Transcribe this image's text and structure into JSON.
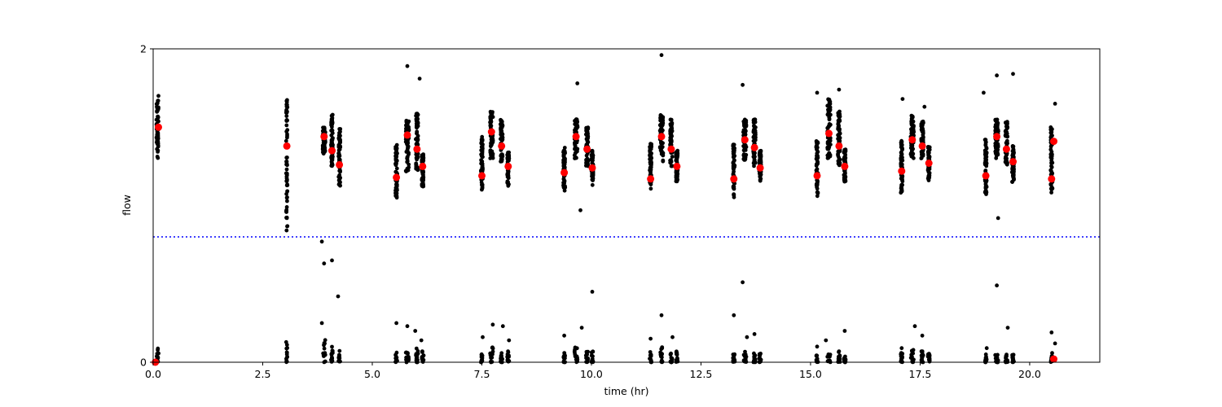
{
  "chart_data": {
    "type": "scatter",
    "title": "",
    "xlabel": "time (hr)",
    "ylabel": "flow",
    "xlim": [
      0,
      21.6
    ],
    "ylim": [
      0,
      2
    ],
    "xticks": [
      {
        "value": 0,
        "label": "0.0"
      },
      {
        "value": 2.5,
        "label": "2.5"
      },
      {
        "value": 5,
        "label": "5.0"
      },
      {
        "value": 7.5,
        "label": "7.5"
      },
      {
        "value": 10,
        "label": "10.0"
      },
      {
        "value": 12.5,
        "label": "12.5"
      },
      {
        "value": 15,
        "label": "15.0"
      },
      {
        "value": 17.5,
        "label": "17.5"
      },
      {
        "value": 20,
        "label": "20.0"
      }
    ],
    "yticks": [
      {
        "value": 0,
        "label": "0"
      },
      {
        "value": 2,
        "label": "2"
      }
    ],
    "threshold": {
      "y": 0.8,
      "color": "#0000ff",
      "style": "dotted"
    },
    "grid": false,
    "colors": {
      "raw_points": "#000000",
      "mean_points": "#ff0000"
    },
    "raw_clusters": [
      {
        "x": 0.1,
        "width": 0.05,
        "ymin": 1.3,
        "ymax": 1.67,
        "lowTop": 0.1
      },
      {
        "x": 3.05,
        "width": 0.03,
        "ymin": 0.83,
        "ymax": 1.68,
        "lowTop": 0.13
      },
      {
        "x": 3.9,
        "width": 0.06,
        "ymin": 1.33,
        "ymax": 1.5,
        "lowTop": 0.15
      },
      {
        "x": 4.08,
        "width": 0.04,
        "ymin": 1.25,
        "ymax": 1.58,
        "lowTop": 0.1
      },
      {
        "x": 4.25,
        "width": 0.04,
        "ymin": 1.12,
        "ymax": 1.5,
        "lowTop": 0.08
      },
      {
        "x": 5.55,
        "width": 0.04,
        "ymin": 1.05,
        "ymax": 1.4,
        "lowTop": 0.07
      },
      {
        "x": 5.8,
        "width": 0.07,
        "ymin": 1.2,
        "ymax": 1.55,
        "lowTop": 0.08
      },
      {
        "x": 6.02,
        "width": 0.05,
        "ymin": 1.2,
        "ymax": 1.6,
        "lowTop": 0.1
      },
      {
        "x": 6.15,
        "width": 0.04,
        "ymin": 1.12,
        "ymax": 1.33,
        "lowTop": 0.07
      },
      {
        "x": 7.5,
        "width": 0.04,
        "ymin": 1.1,
        "ymax": 1.45,
        "lowTop": 0.06
      },
      {
        "x": 7.72,
        "width": 0.07,
        "ymin": 1.3,
        "ymax": 1.6,
        "lowTop": 0.1
      },
      {
        "x": 7.95,
        "width": 0.05,
        "ymin": 1.28,
        "ymax": 1.55,
        "lowTop": 0.07
      },
      {
        "x": 8.1,
        "width": 0.04,
        "ymin": 1.12,
        "ymax": 1.35,
        "lowTop": 0.07
      },
      {
        "x": 9.38,
        "width": 0.04,
        "ymin": 1.08,
        "ymax": 1.38,
        "lowTop": 0.06
      },
      {
        "x": 9.65,
        "width": 0.07,
        "ymin": 1.3,
        "ymax": 1.55,
        "lowTop": 0.1
      },
      {
        "x": 9.9,
        "width": 0.05,
        "ymin": 1.25,
        "ymax": 1.5,
        "lowTop": 0.07
      },
      {
        "x": 10.02,
        "width": 0.04,
        "ymin": 1.13,
        "ymax": 1.35,
        "lowTop": 0.08
      },
      {
        "x": 11.35,
        "width": 0.04,
        "ymin": 1.1,
        "ymax": 1.4,
        "lowTop": 0.07
      },
      {
        "x": 11.6,
        "width": 0.07,
        "ymin": 1.28,
        "ymax": 1.58,
        "lowTop": 0.1
      },
      {
        "x": 11.82,
        "width": 0.05,
        "ymin": 1.25,
        "ymax": 1.55,
        "lowTop": 0.08
      },
      {
        "x": 11.95,
        "width": 0.04,
        "ymin": 1.15,
        "ymax": 1.35,
        "lowTop": 0.07
      },
      {
        "x": 13.25,
        "width": 0.04,
        "ymin": 1.05,
        "ymax": 1.4,
        "lowTop": 0.06
      },
      {
        "x": 13.5,
        "width": 0.07,
        "ymin": 1.28,
        "ymax": 1.55,
        "lowTop": 0.07
      },
      {
        "x": 13.72,
        "width": 0.05,
        "ymin": 1.25,
        "ymax": 1.55,
        "lowTop": 0.07
      },
      {
        "x": 13.85,
        "width": 0.04,
        "ymin": 1.15,
        "ymax": 1.35,
        "lowTop": 0.06
      },
      {
        "x": 15.15,
        "width": 0.04,
        "ymin": 1.06,
        "ymax": 1.42,
        "lowTop": 0.06
      },
      {
        "x": 15.42,
        "width": 0.07,
        "ymin": 1.3,
        "ymax": 1.68,
        "lowTop": 0.07
      },
      {
        "x": 15.65,
        "width": 0.05,
        "ymin": 1.25,
        "ymax": 1.6,
        "lowTop": 0.07
      },
      {
        "x": 15.78,
        "width": 0.04,
        "ymin": 1.14,
        "ymax": 1.36,
        "lowTop": 0.05
      },
      {
        "x": 17.08,
        "width": 0.04,
        "ymin": 1.08,
        "ymax": 1.43,
        "lowTop": 0.06
      },
      {
        "x": 17.32,
        "width": 0.07,
        "ymin": 1.3,
        "ymax": 1.58,
        "lowTop": 0.08
      },
      {
        "x": 17.55,
        "width": 0.05,
        "ymin": 1.3,
        "ymax": 1.55,
        "lowTop": 0.07
      },
      {
        "x": 17.7,
        "width": 0.04,
        "ymin": 1.16,
        "ymax": 1.38,
        "lowTop": 0.06
      },
      {
        "x": 19.0,
        "width": 0.04,
        "ymin": 1.07,
        "ymax": 1.42,
        "lowTop": 0.05
      },
      {
        "x": 19.25,
        "width": 0.07,
        "ymin": 1.3,
        "ymax": 1.55,
        "lowTop": 0.05
      },
      {
        "x": 19.47,
        "width": 0.05,
        "ymin": 1.25,
        "ymax": 1.55,
        "lowTop": 0.05
      },
      {
        "x": 19.62,
        "width": 0.04,
        "ymin": 1.15,
        "ymax": 1.38,
        "lowTop": 0.05
      },
      {
        "x": 20.5,
        "width": 0.04,
        "ymin": 1.08,
        "ymax": 1.5,
        "lowTop": 0.06
      }
    ],
    "outliers": [
      [
        0.12,
        1.7
      ],
      [
        3.05,
        1.05
      ],
      [
        3.05,
        0.92
      ],
      [
        3.05,
        0.99
      ],
      [
        3.85,
        0.77
      ],
      [
        3.9,
        0.63
      ],
      [
        4.08,
        0.65
      ],
      [
        4.22,
        0.42
      ],
      [
        3.85,
        0.25
      ],
      [
        5.55,
        0.25
      ],
      [
        5.8,
        0.23
      ],
      [
        5.98,
        0.2
      ],
      [
        6.12,
        0.14
      ],
      [
        5.8,
        1.89
      ],
      [
        6.08,
        1.81
      ],
      [
        7.52,
        0.16
      ],
      [
        7.75,
        0.24
      ],
      [
        7.98,
        0.23
      ],
      [
        8.12,
        0.14
      ],
      [
        9.38,
        0.17
      ],
      [
        9.78,
        0.22
      ],
      [
        10.02,
        0.45
      ],
      [
        9.68,
        1.78
      ],
      [
        9.75,
        0.97
      ],
      [
        11.35,
        0.15
      ],
      [
        11.6,
        0.3
      ],
      [
        11.85,
        0.16
      ],
      [
        11.6,
        1.96
      ],
      [
        13.25,
        0.3
      ],
      [
        13.45,
        0.51
      ],
      [
        13.55,
        0.16
      ],
      [
        13.72,
        0.18
      ],
      [
        13.45,
        1.77
      ],
      [
        15.15,
        0.1
      ],
      [
        15.35,
        0.14
      ],
      [
        15.78,
        0.2
      ],
      [
        15.15,
        1.72
      ],
      [
        15.65,
        1.74
      ],
      [
        17.1,
        1.68
      ],
      [
        17.08,
        0.09
      ],
      [
        17.38,
        0.23
      ],
      [
        17.55,
        0.17
      ],
      [
        17.6,
        1.63
      ],
      [
        18.95,
        1.72
      ],
      [
        19.25,
        1.83
      ],
      [
        19.62,
        1.84
      ],
      [
        19.25,
        0.49
      ],
      [
        19.28,
        0.92
      ],
      [
        19.5,
        0.22
      ],
      [
        19.02,
        0.09
      ],
      [
        20.5,
        0.19
      ],
      [
        20.58,
        0.12
      ],
      [
        20.58,
        1.65
      ]
    ],
    "means": [
      [
        0.12,
        1.5
      ],
      [
        3.05,
        1.38
      ],
      [
        3.9,
        1.44
      ],
      [
        4.08,
        1.35
      ],
      [
        4.25,
        1.26
      ],
      [
        5.55,
        1.18
      ],
      [
        5.8,
        1.45
      ],
      [
        6.02,
        1.36
      ],
      [
        6.15,
        1.25
      ],
      [
        7.5,
        1.19
      ],
      [
        7.72,
        1.47
      ],
      [
        7.95,
        1.38
      ],
      [
        8.1,
        1.25
      ],
      [
        9.38,
        1.21
      ],
      [
        9.65,
        1.44
      ],
      [
        9.9,
        1.36
      ],
      [
        10.02,
        1.24
      ],
      [
        11.35,
        1.17
      ],
      [
        11.6,
        1.44
      ],
      [
        11.82,
        1.36
      ],
      [
        11.95,
        1.25
      ],
      [
        13.25,
        1.17
      ],
      [
        13.5,
        1.42
      ],
      [
        13.72,
        1.37
      ],
      [
        13.85,
        1.24
      ],
      [
        15.15,
        1.19
      ],
      [
        15.42,
        1.46
      ],
      [
        15.65,
        1.38
      ],
      [
        15.78,
        1.25
      ],
      [
        17.08,
        1.22
      ],
      [
        17.32,
        1.42
      ],
      [
        17.55,
        1.38
      ],
      [
        17.7,
        1.27
      ],
      [
        19.0,
        1.19
      ],
      [
        19.25,
        1.44
      ],
      [
        19.47,
        1.36
      ],
      [
        19.62,
        1.28
      ],
      [
        20.5,
        1.17
      ],
      [
        20.55,
        1.41
      ],
      [
        0.05,
        0.0
      ],
      [
        20.55,
        0.02
      ]
    ]
  }
}
